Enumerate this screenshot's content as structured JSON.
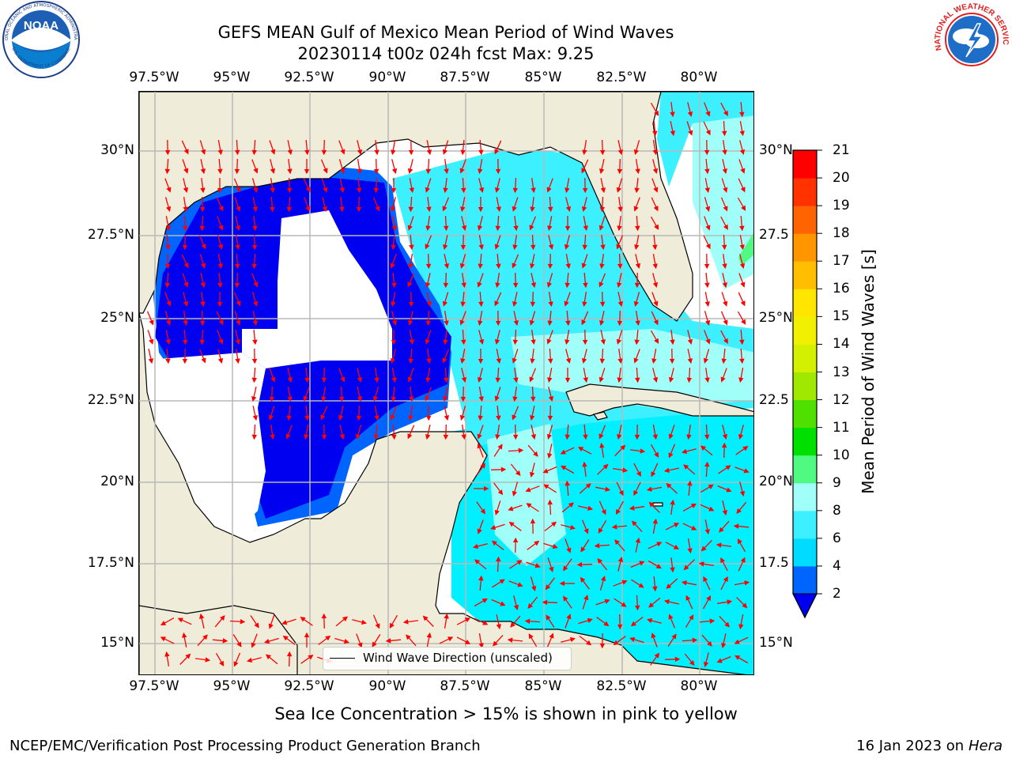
{
  "title": {
    "line1": "GEFS MEAN Gulf of Mexico Mean Period of Wind Waves",
    "line2": "20230114 t00z 024h fcst   Max: 9.25"
  },
  "map": {
    "lon_labels": [
      "97.5°W",
      "95°W",
      "92.5°W",
      "90°W",
      "87.5°W",
      "85°W",
      "82.5°W",
      "80°W"
    ],
    "lat_labels_left": [
      "30°N",
      "27.5°N",
      "25°N",
      "22.5°N",
      "20°N",
      "17.5°N",
      "15°N"
    ],
    "lat_labels_right": [
      "30°N",
      "27.5",
      "25°N",
      "22.5",
      "20°N",
      "17.5",
      "15°N"
    ],
    "extent": {
      "lon_min": -98.0,
      "lon_max": -78.2,
      "lat_min": 14.0,
      "lat_max": 31.8
    },
    "colors": {
      "land": "#efedd9",
      "ocean_nodata": "#ffffff",
      "arrow": "#ff0000",
      "grid": "#b8b8b8"
    }
  },
  "legend": {
    "text": "Wind Wave Direction (unscaled)"
  },
  "colorbar": {
    "label": "Mean Period of Wind Waves [s]",
    "levels": [
      "2",
      "4",
      "6",
      "8",
      "9",
      "10",
      "11",
      "12",
      "13",
      "14",
      "15",
      "16",
      "17",
      "18",
      "19",
      "20",
      "21"
    ],
    "colors": [
      "#0064ff",
      "#00dcff",
      "#3cf0ff",
      "#a0fff8",
      "#50fa82",
      "#00e000",
      "#50e000",
      "#a0e800",
      "#d2f000",
      "#f0f000",
      "#ffe600",
      "#ffbe00",
      "#ff9600",
      "#ff6400",
      "#ff3200",
      "#ff0000"
    ],
    "extend_color": "#0000f0"
  },
  "note": "Sea Ice Concentration > 15% is shown in pink to yellow",
  "footer": {
    "left": "NCEP/EMC/Verification Post Processing Product Generation Branch",
    "right_date": "16 Jan 2023 on ",
    "right_host": "Hera"
  },
  "logos": {
    "noaa_text": "NOAA",
    "noaa_ring_top": "NATIONAL OCEANIC AND ATMOSPHERIC ADMINISTRATION",
    "noaa_ring_bottom": "U.S. DEPARTMENT OF COMMERCE",
    "nws_ring": "NATIONAL WEATHER SERVICE"
  }
}
